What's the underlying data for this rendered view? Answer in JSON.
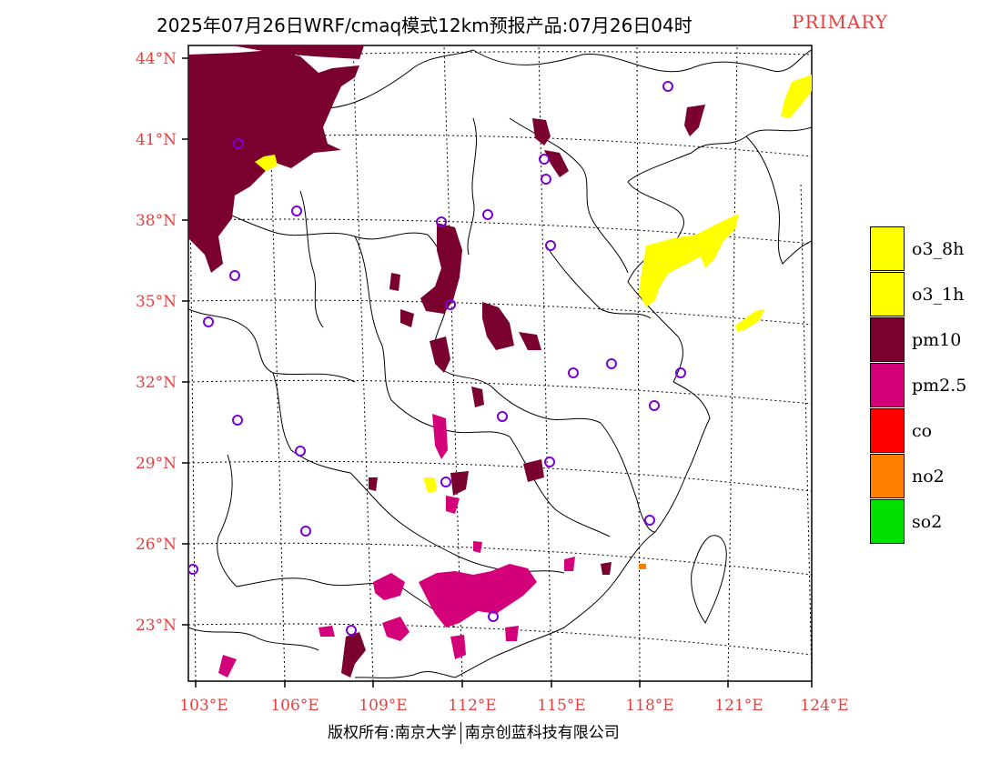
{
  "title": {
    "main": "2025年07月26日WRF/cmaq模式12km预报产品:07月26日04时",
    "tag": "PRIMARY"
  },
  "axes": {
    "lat_labels": [
      "44°N",
      "41°N",
      "38°N",
      "35°N",
      "32°N",
      "29°N",
      "26°N",
      "23°N"
    ],
    "lon_labels": [
      "103°E",
      "106°E",
      "109°E",
      "112°E",
      "115°E",
      "118°E",
      "121°E",
      "124°E"
    ]
  },
  "legend": {
    "items": [
      {
        "label": "o3_8h",
        "color": "#ffff00"
      },
      {
        "label": "o3_1h",
        "color": "#ffff00"
      },
      {
        "label": "pm10",
        "color": "#7a0030"
      },
      {
        "label": "pm2.5",
        "color": "#d4007a"
      },
      {
        "label": "co",
        "color": "#ff0000"
      },
      {
        "label": "no2",
        "color": "#ff8000"
      },
      {
        "label": "so2",
        "color": "#00e000"
      }
    ]
  },
  "colors": {
    "o3": "#ffff00",
    "pm10": "#7a0030",
    "pm25": "#d4007a",
    "no2": "#ff8000",
    "station": "#7a00d4",
    "label": "#e64040"
  },
  "footer": {
    "left": "版权所有:南京大学",
    "right": "南京创蓝科技有限公司"
  }
}
